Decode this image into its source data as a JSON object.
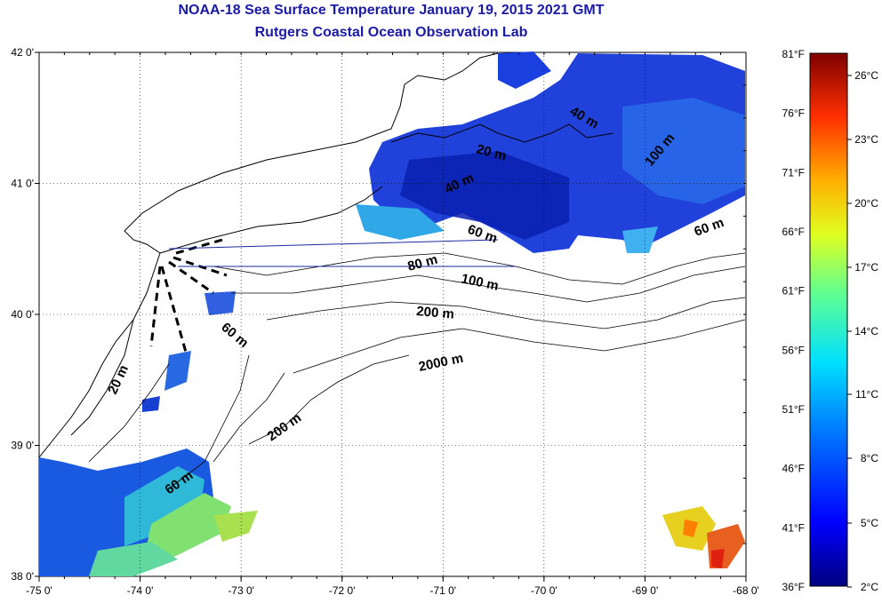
{
  "title": "NOAA-18 Sea Surface Temperature January 19, 2015 2021 GMT",
  "subtitle": "Rutgers Coastal Ocean Observation Lab",
  "map": {
    "lon_labels": [
      "-75 0'",
      "-74 0'",
      "-73 0'",
      "-72 0'",
      "-71 0'",
      "-70 0'",
      "-69 0'",
      "-68 0'"
    ],
    "lat_labels": [
      "42 0'",
      "41 0'",
      "40 0'",
      "39 0'",
      "38 0'"
    ],
    "contour_labels": [
      "20 m",
      "40 m",
      "60 m",
      "80 m",
      "100 m",
      "200 m",
      "2000 m",
      "200 m",
      "60 m",
      "20 m",
      "60 m",
      "40 m",
      "100 m",
      "60 m"
    ]
  },
  "colorbar": {
    "fahrenheit": [
      "81°F",
      "76°F",
      "71°F",
      "66°F",
      "61°F",
      "56°F",
      "51°F",
      "46°F",
      "41°F",
      "36°F"
    ],
    "celsius": [
      "26°C",
      "23°C",
      "20°C",
      "17°C",
      "14°C",
      "11°C",
      "8°C",
      "5°C",
      "2°C"
    ]
  },
  "colors": {
    "title": "#1a1aa8",
    "cold": "#1020c8",
    "mid": "#20a0e8",
    "warm": "#a0e040"
  }
}
